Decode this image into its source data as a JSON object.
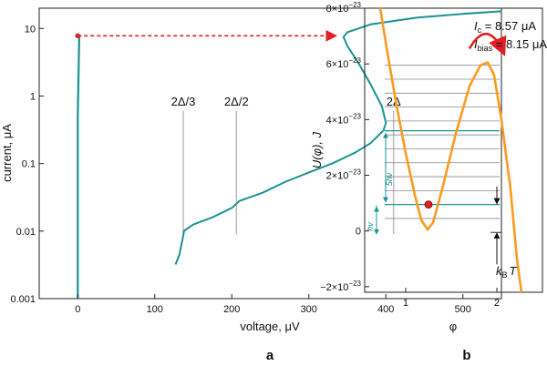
{
  "colors": {
    "curve": "#1a9393",
    "arrow": "#e02020",
    "potential": "#ff9a1f",
    "levels": "#8a8a8a",
    "level_teal": "#1a9393",
    "gap_line": "#bbbbbb",
    "dot": "#e02020"
  },
  "chart_data": [
    {
      "type": "line",
      "panel_label": "a",
      "xlabel": "voltage, μV",
      "ylabel": "current, μA",
      "x_scale": "linear",
      "y_scale": "log",
      "xlim": [
        -50,
        550
      ],
      "ylim": [
        0.001,
        20
      ],
      "x_ticks": [
        0,
        100,
        200,
        300,
        400,
        500
      ],
      "x_tick_labels": [
        "0",
        "100",
        "200",
        "300",
        "400",
        "500"
      ],
      "y_ticks": [
        0.001,
        0.01,
        0.1,
        1,
        10
      ],
      "y_tick_labels": [
        "0.001",
        "0.01",
        "0.1",
        "1",
        "10"
      ],
      "series": [
        {
          "values": [
            {
              "x": 0,
              "y": 0.001
            },
            {
              "x": 0,
              "y": 0.5
            },
            {
              "x": 2,
              "y": 7.5
            },
            {
              "x": 4,
              "y": 8.0
            }
          ]
        },
        {
          "values": [
            {
              "x": 127,
              "y": 0.0032
            },
            {
              "x": 132,
              "y": 0.0045
            },
            {
              "x": 136,
              "y": 0.0075
            },
            {
              "x": 138,
              "y": 0.0101
            },
            {
              "x": 150,
              "y": 0.0125
            },
            {
              "x": 175,
              "y": 0.016
            },
            {
              "x": 200,
              "y": 0.022
            },
            {
              "x": 210,
              "y": 0.028
            },
            {
              "x": 240,
              "y": 0.037
            },
            {
              "x": 270,
              "y": 0.054
            },
            {
              "x": 300,
              "y": 0.074
            },
            {
              "x": 330,
              "y": 0.1
            },
            {
              "x": 360,
              "y": 0.145
            },
            {
              "x": 380,
              "y": 0.2
            },
            {
              "x": 397,
              "y": 0.31
            },
            {
              "x": 400,
              "y": 0.4
            },
            {
              "x": 395,
              "y": 0.7
            },
            {
              "x": 380,
              "y": 1.5
            },
            {
              "x": 365,
              "y": 3.0
            },
            {
              "x": 350,
              "y": 5.5
            },
            {
              "x": 345,
              "y": 7.5
            },
            {
              "x": 350,
              "y": 8.8
            },
            {
              "x": 380,
              "y": 11.5
            },
            {
              "x": 440,
              "y": 14.5
            },
            {
              "x": 500,
              "y": 16.5
            },
            {
              "x": 550,
              "y": 18
            }
          ]
        }
      ],
      "gap_markers": [
        {
          "label": "2Δ/3",
          "x": 137,
          "y_from": 0.009,
          "y_to": 0.6
        },
        {
          "label": "2Δ/2",
          "x": 206,
          "y_from": 0.009,
          "y_to": 0.6
        },
        {
          "label": "2Δ",
          "x": 410,
          "y_from": 0.009,
          "y_to": 0.6
        }
      ],
      "switch_arrow": {
        "x_from": 0,
        "x_to": 340,
        "y": 7.8
      }
    },
    {
      "type": "line",
      "panel_label": "b",
      "xlabel": "φ",
      "ylabel": "U(φ), J",
      "xlim": [
        0.55,
        2.5
      ],
      "ylim": [
        -2.2e-23,
        8e-23
      ],
      "x_ticks": [
        1,
        2
      ],
      "x_tick_labels": [
        "1",
        "2"
      ],
      "y_ticks": [
        -2e-23,
        0,
        2e-23,
        4e-23,
        6e-23,
        8e-23
      ],
      "y_tick_labels": [
        "−2×10",
        "0",
        "2×10",
        "4×10",
        "6×10",
        "8×10"
      ],
      "y_tick_exponent": "−23",
      "params": {
        "Ic": "8.57 μA",
        "Ibias": "8.15 μA",
        "I_c_label": "I",
        "I_c_sub": "c",
        "I_bias_sub": "bias"
      },
      "potential_curve": [
        {
          "x": 0.72,
          "y": 8.2e-23
        },
        {
          "x": 0.8,
          "y": 6.4e-23
        },
        {
          "x": 0.9,
          "y": 4.5e-23
        },
        {
          "x": 1.0,
          "y": 2.8e-23
        },
        {
          "x": 1.1,
          "y": 1.3e-23
        },
        {
          "x": 1.17,
          "y": 4e-24
        },
        {
          "x": 1.24,
          "y": 5e-25
        },
        {
          "x": 1.3,
          "y": 3e-24
        },
        {
          "x": 1.4,
          "y": 1.5e-23
        },
        {
          "x": 1.55,
          "y": 3.5e-23
        },
        {
          "x": 1.7,
          "y": 5.2e-23
        },
        {
          "x": 1.82,
          "y": 5.95e-23
        },
        {
          "x": 1.9,
          "y": 6.05e-23
        },
        {
          "x": 1.97,
          "y": 5.6e-23
        },
        {
          "x": 2.05,
          "y": 4e-23
        },
        {
          "x": 2.15,
          "y": 1.5e-23
        },
        {
          "x": 2.22,
          "y": -1e-23
        },
        {
          "x": 2.27,
          "y": -2.4e-23
        }
      ],
      "energy_levels": [
        4.5e-24,
        9.5e-24,
        1.45e-23,
        1.95e-23,
        2.45e-23,
        2.95e-23,
        3.45e-23,
        3.95e-23,
        4.45e-23,
        4.95e-23,
        5.45e-23,
        5.95e-23
      ],
      "highlight_levels": [
        9.5e-24,
        3.6e-23
      ],
      "state_point": {
        "x": 1.25,
        "y": 9.5e-24
      },
      "hv_label": "hν",
      "five_hv_label": "5hν",
      "kBT_label": "k",
      "kBT_sub": "B",
      "kBT_T": "T"
    }
  ]
}
